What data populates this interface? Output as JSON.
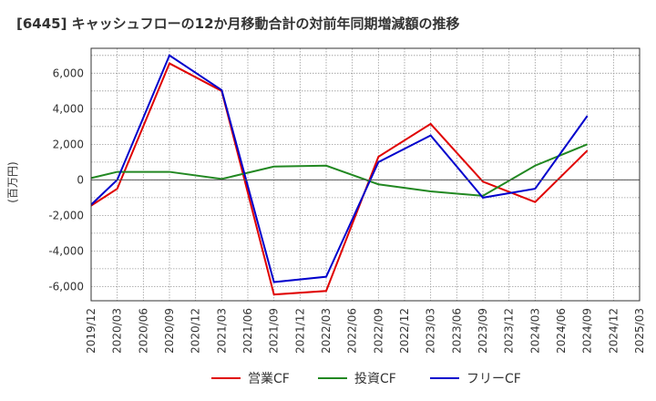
{
  "chart_data": {
    "type": "line",
    "title": "[6445]  キャッシュフローの12か月移動合計の対前年同期増減額の推移",
    "ylabel": "(百万円)",
    "xlabel": "",
    "x": [
      "2019/12",
      "2020/03",
      "2020/06",
      "2020/09",
      "2020/12",
      "2021/03",
      "2021/06",
      "2021/09",
      "2021/12",
      "2022/03",
      "2022/06",
      "2022/09",
      "2022/12",
      "2023/03",
      "2023/06",
      "2023/09",
      "2023/12",
      "2024/03",
      "2024/06",
      "2024/09",
      "2024/12",
      "2025/03"
    ],
    "yticks": [
      6000,
      4000,
      2000,
      0,
      -2000,
      -4000,
      -6000
    ],
    "ytick_labels": [
      "6,000",
      "4,000",
      "2,000",
      "0",
      "-2,000",
      "-4,000",
      "-6,000"
    ],
    "ylim": [
      -6800,
      7400
    ],
    "grid": true,
    "legend_position": "bottom",
    "series": [
      {
        "name": "営業CF",
        "color": "#e00000",
        "values": [
          -1450,
          -500,
          null,
          6550,
          null,
          5000,
          null,
          -6450,
          null,
          -6250,
          null,
          1300,
          null,
          3150,
          null,
          -100,
          null,
          -1250,
          null,
          1650,
          null,
          null
        ]
      },
      {
        "name": "投資CF",
        "color": "#228822",
        "values": [
          100,
          450,
          null,
          450,
          null,
          50,
          null,
          750,
          null,
          800,
          null,
          -250,
          null,
          -650,
          null,
          -900,
          null,
          800,
          null,
          2000,
          null,
          null
        ]
      },
      {
        "name": "フリーCF",
        "color": "#0000cc",
        "values": [
          -1400,
          0,
          null,
          7000,
          null,
          5050,
          null,
          -5750,
          null,
          -5450,
          null,
          1000,
          null,
          2500,
          null,
          -1000,
          null,
          -500,
          null,
          3600,
          null,
          null
        ]
      }
    ]
  }
}
